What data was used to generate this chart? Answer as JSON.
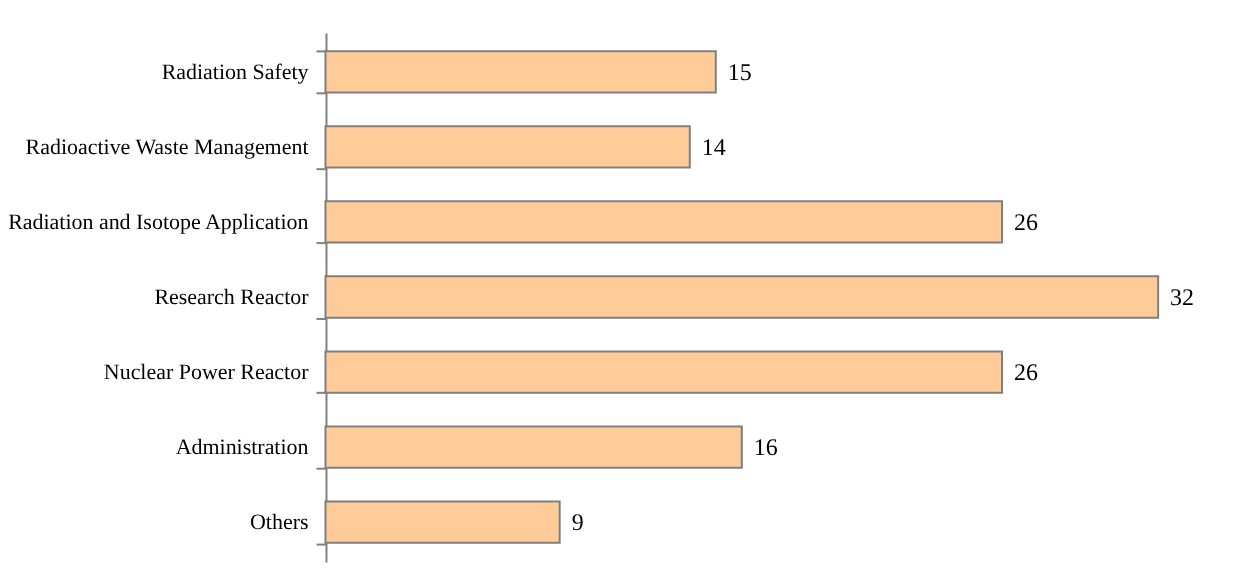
{
  "chart_data": {
    "type": "bar",
    "orientation": "horizontal",
    "categories": [
      "Radiation Safety",
      "Radioactive Waste Management",
      "Radiation and Isotope Application",
      "Research Reactor",
      "Nuclear Power Reactor",
      "Administration",
      "Others"
    ],
    "values": [
      15,
      14,
      26,
      32,
      26,
      16,
      9
    ],
    "color": "#ffcc99",
    "data_labels": true,
    "tick_labels": "y"
  }
}
